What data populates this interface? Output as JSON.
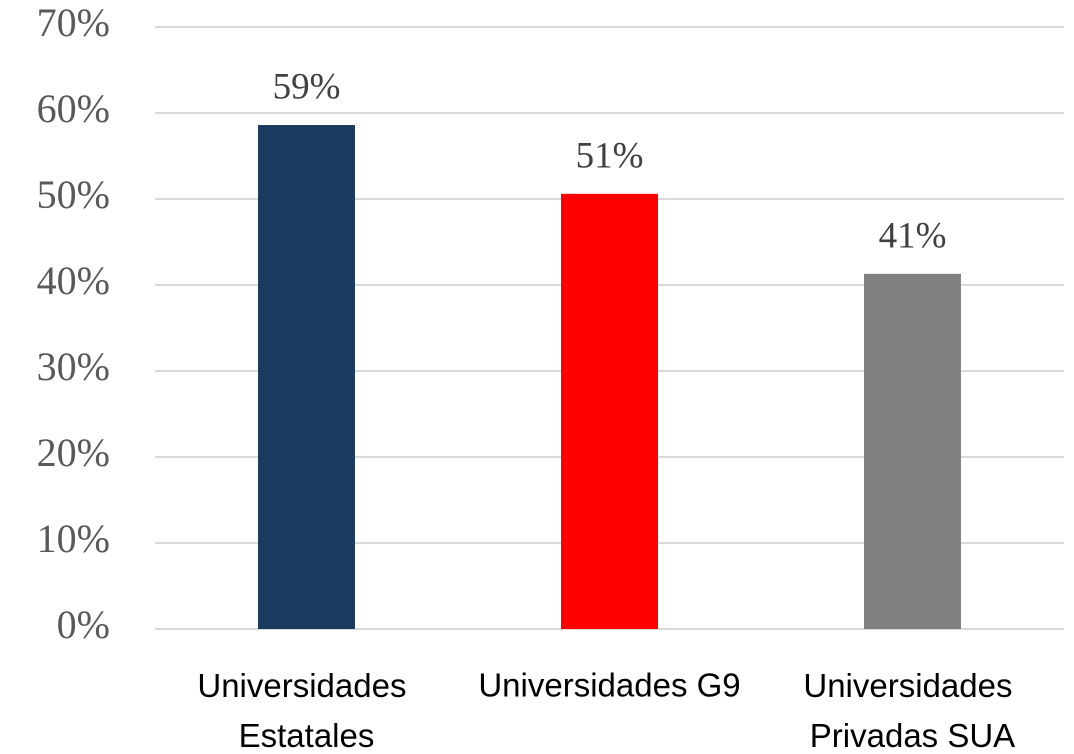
{
  "chart_data": {
    "type": "bar",
    "categories": [
      "Universidades Estatales",
      "Universidades G9",
      "Universidades Privadas SUA"
    ],
    "values": [
      58.6,
      50.6,
      41.3
    ],
    "value_labels": [
      "59%",
      "51%",
      "41%"
    ],
    "colors": [
      "#1b3a5f",
      "#ff0000",
      "#808080"
    ],
    "ylim": [
      0,
      70
    ],
    "yticks": [
      {
        "value": 0,
        "label": "0%"
      },
      {
        "value": 10,
        "label": "10%"
      },
      {
        "value": 20,
        "label": "20%"
      },
      {
        "value": 30,
        "label": "30%"
      },
      {
        "value": 40,
        "label": "40%"
      },
      {
        "value": 50,
        "label": "50%"
      },
      {
        "value": 60,
        "label": "60%"
      },
      {
        "value": 70,
        "label": "70%"
      }
    ],
    "grid": true
  }
}
